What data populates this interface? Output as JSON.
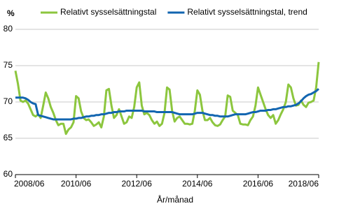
{
  "chart_data": {
    "type": "line",
    "y_label": "%",
    "x_label": "År/månad",
    "categories": [
      "2008/06",
      null,
      null,
      null,
      null,
      null,
      null,
      null,
      null,
      null,
      null,
      null,
      null,
      null,
      null,
      null,
      null,
      null,
      null,
      null,
      null,
      null,
      null,
      null,
      "2010/06",
      null,
      null,
      null,
      null,
      null,
      null,
      null,
      null,
      null,
      null,
      null,
      null,
      null,
      null,
      null,
      null,
      null,
      null,
      null,
      null,
      null,
      null,
      null,
      "2012/06",
      null,
      null,
      null,
      null,
      null,
      null,
      null,
      null,
      null,
      null,
      null,
      null,
      null,
      null,
      null,
      null,
      null,
      null,
      null,
      null,
      null,
      null,
      null,
      "2014/06",
      null,
      null,
      null,
      null,
      null,
      null,
      null,
      null,
      null,
      null,
      null,
      null,
      null,
      null,
      null,
      null,
      null,
      null,
      null,
      null,
      null,
      null,
      null,
      "2016/06",
      null,
      null,
      null,
      null,
      null,
      null,
      null,
      null,
      null,
      null,
      null,
      null,
      null,
      null,
      null,
      null,
      null,
      null,
      null,
      null,
      null,
      null,
      null,
      "2018/06"
    ],
    "series": [
      {
        "name": "Relativt sysselsättningstal",
        "color": "#8cc63e",
        "values": [
          74.3,
          72.5,
          70.2,
          70.0,
          70.2,
          69.8,
          69.0,
          68.2,
          68.0,
          68.3,
          67.8,
          69.5,
          71.3,
          70.5,
          69.3,
          68.5,
          67.5,
          66.8,
          67.0,
          67.0,
          65.6,
          66.2,
          66.5,
          67.2,
          70.8,
          70.5,
          68.7,
          67.8,
          67.5,
          67.6,
          67.2,
          66.7,
          66.9,
          67.2,
          66.5,
          68.0,
          71.6,
          71.8,
          69.5,
          67.8,
          68.2,
          69.0,
          68.0,
          67.0,
          67.2,
          68.0,
          67.8,
          69.3,
          72.0,
          72.7,
          69.5,
          68.3,
          68.5,
          68.2,
          67.5,
          67.0,
          67.3,
          66.7,
          67.0,
          68.5,
          72.0,
          71.7,
          68.8,
          67.3,
          67.8,
          68.0,
          67.5,
          67.0,
          67.0,
          66.9,
          67.0,
          68.8,
          71.6,
          71.0,
          68.8,
          67.5,
          67.5,
          67.8,
          67.2,
          66.8,
          66.7,
          66.9,
          67.5,
          68.0,
          70.9,
          70.7,
          68.8,
          68.5,
          68.2,
          67.0,
          66.9,
          66.9,
          66.8,
          67.5,
          68.0,
          69.5,
          72.0,
          71.0,
          70.0,
          69.0,
          68.2,
          67.8,
          68.2,
          67.0,
          67.5,
          68.3,
          69.0,
          70.0,
          72.4,
          72.0,
          70.5,
          69.5,
          69.6,
          70.2,
          69.6,
          69.3,
          69.9,
          70.0,
          70.2,
          72.0,
          75.5
        ]
      },
      {
        "name": "Relativt sysselsättningstal, trend",
        "color": "#1265b0",
        "values": [
          70.6,
          70.6,
          70.6,
          70.6,
          70.5,
          70.3,
          70.0,
          69.8,
          69.7,
          68.2,
          68.1,
          68.0,
          67.9,
          67.8,
          67.7,
          67.6,
          67.6,
          67.6,
          67.6,
          67.6,
          67.6,
          67.6,
          67.6,
          67.7,
          67.7,
          67.8,
          67.8,
          67.9,
          68.0,
          68.0,
          68.1,
          68.1,
          68.2,
          68.2,
          68.3,
          68.3,
          68.4,
          68.5,
          68.5,
          68.6,
          68.6,
          68.7,
          68.7,
          68.7,
          68.8,
          68.8,
          68.8,
          68.8,
          68.8,
          68.8,
          68.8,
          68.7,
          68.7,
          68.7,
          68.7,
          68.7,
          68.6,
          68.6,
          68.6,
          68.6,
          68.6,
          68.6,
          68.6,
          68.5,
          68.4,
          68.3,
          68.3,
          68.3,
          68.3,
          68.3,
          68.3,
          68.4,
          68.5,
          68.5,
          68.5,
          68.4,
          68.3,
          68.2,
          68.2,
          68.1,
          68.1,
          68.0,
          68.0,
          68.0,
          68.0,
          68.1,
          68.2,
          68.3,
          68.3,
          68.3,
          68.3,
          68.3,
          68.4,
          68.5,
          68.6,
          68.6,
          68.7,
          68.8,
          68.8,
          68.8,
          68.9,
          68.9,
          69.0,
          69.0,
          69.1,
          69.2,
          69.3,
          69.3,
          69.4,
          69.4,
          69.5,
          69.6,
          69.8,
          70.1,
          70.5,
          70.8,
          71.0,
          71.1,
          71.3,
          71.5,
          71.8
        ]
      }
    ],
    "ylim": [
      60,
      80
    ],
    "yticks": [
      60,
      65,
      70,
      75,
      80
    ],
    "grid": true
  }
}
